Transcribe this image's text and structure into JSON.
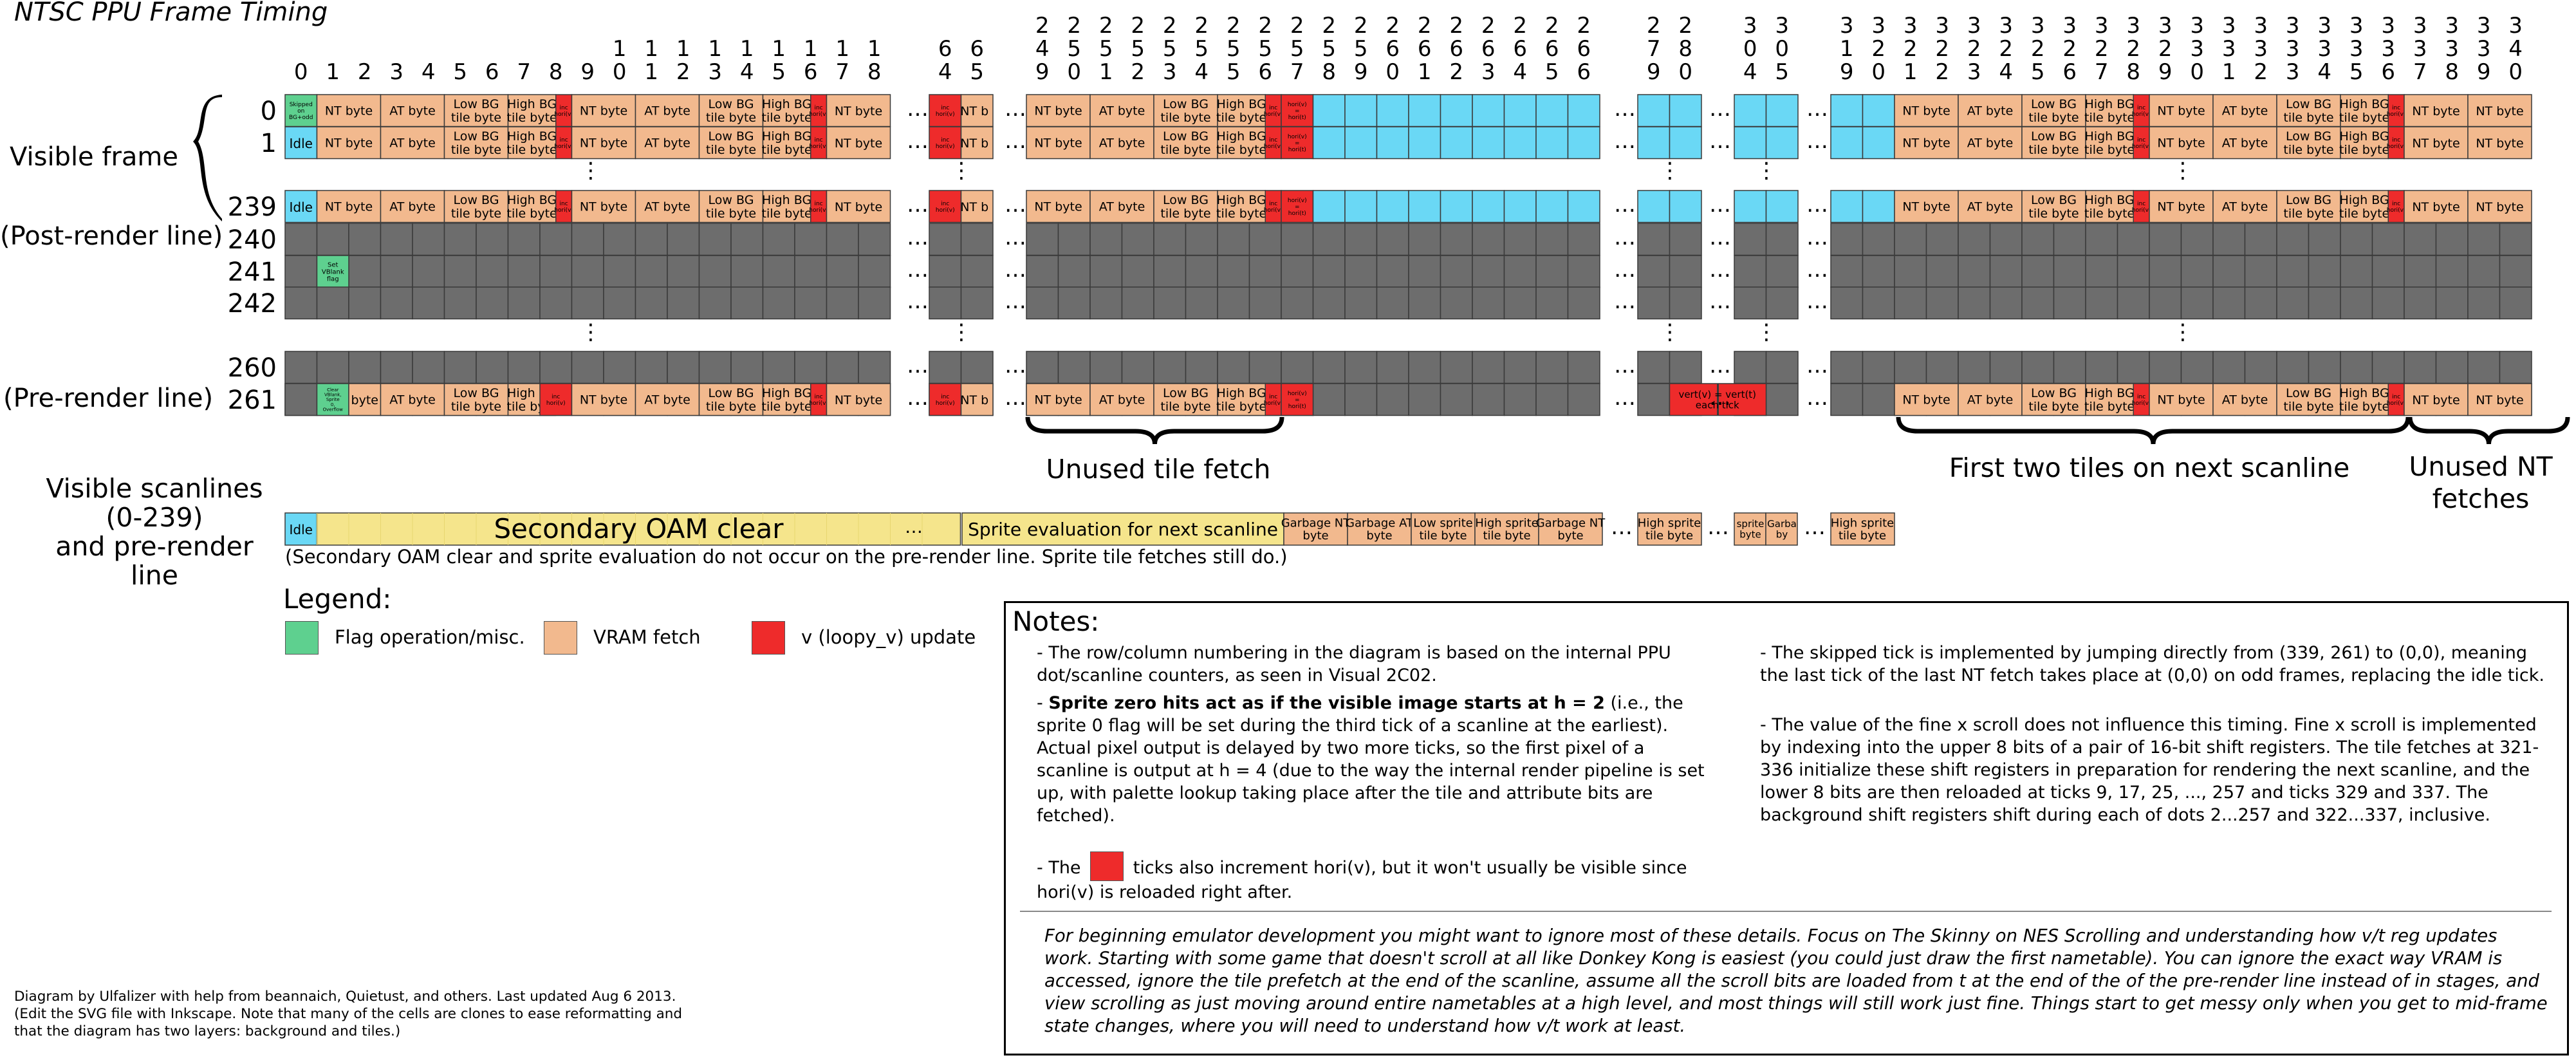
{
  "title": "NTSC PPU Frame Timing",
  "columns": {
    "groups": [
      [
        "0",
        "1",
        "2",
        "3",
        "4",
        "5",
        "6",
        "7",
        "8",
        "9",
        "10",
        "11",
        "12",
        "13",
        "14",
        "15",
        "16",
        "17",
        "18"
      ],
      [
        "64",
        "65"
      ],
      [
        "249",
        "250",
        "251",
        "252",
        "253",
        "254",
        "255",
        "256",
        "257",
        "258",
        "259",
        "260",
        "261",
        "262",
        "263",
        "264",
        "265",
        "266"
      ],
      [
        "279",
        "280"
      ],
      [
        "304",
        "305"
      ],
      [
        "319",
        "320",
        "321",
        "322",
        "323",
        "324",
        "325",
        "326",
        "327",
        "328",
        "329",
        "330",
        "331",
        "332",
        "333",
        "334",
        "335",
        "336",
        "337",
        "338",
        "339",
        "340"
      ]
    ]
  },
  "rows": {
    "labels": [
      "0",
      "1",
      "239",
      "240",
      "241",
      "242",
      "260",
      "261"
    ],
    "visible_frame": "Visible frame",
    "post_render": "(Post-render line)",
    "pre_render": "(Pre-render line)"
  },
  "cells": {
    "skipped": "Skipped on BG+odd",
    "idle": "Idle",
    "nt": "NT byte",
    "at": "AT byte",
    "lowbg": "Low BG tile byte",
    "highbg": "High BG tile byte",
    "inc_hori": "inc hori(v)",
    "inc_vert": "inc vert(v)",
    "hori_copy": "hori(v) = hori(t)",
    "set_vblank": "Set VBlank flag",
    "clear_flags": "Clear VBlank, Sprite 0, Overflow",
    "vert_copy": "vert(v) = vert(t) each tick",
    "nt_trunc": "NT b",
    "at_trunc": "byte"
  },
  "braces": {
    "unused_fetch": "Unused tile fetch",
    "first_two": "First two tiles on next scanline",
    "unused_nt": "Unused NT fetches"
  },
  "sprite": {
    "label": "Visible scanlines (0-239) and pre-render line",
    "label_lines": [
      "Visible scanlines",
      "(0-239)",
      "and pre-render",
      "line"
    ],
    "idle": "Idle",
    "oam_clear": "Secondary OAM clear",
    "evaluation": "Sprite evaluation for next scanline",
    "garbage_nt": "Garbage NT byte",
    "garbage_at": "Garbage AT byte",
    "low_sprite": "Low sprite tile byte",
    "high_sprite": "High sprite tile byte",
    "frag1": "sprite byte",
    "frag2": "Garba by",
    "note": "(Secondary OAM clear and sprite evaluation do not occur on the pre-render line. Sprite tile fetches still do.)"
  },
  "legend": {
    "title": "Legend:",
    "flag": "Flag operation/misc.",
    "vram": "VRAM fetch",
    "v_update": "v (loopy_v) update"
  },
  "notes": {
    "title": "Notes:",
    "n1": "- The row/column numbering in the diagram is based on the internal PPU dot/scanline counters, as seen in Visual 2C02.",
    "n2_bold": "Sprite zero hits act as if the visible image starts at h = 2",
    "n2_rest": " (i.e., the sprite 0 flag will be set during the third tick of a scanline at the earliest). Actual pixel output is delayed by two more ticks, so the first pixel of a scanline is output at h = 4 (due to the way the internal render pipeline is set up, with palette lookup taking place after the tile and attribute bits are fetched).",
    "n3_pre": "- The",
    "n3_post": "ticks also increment hori(v), but it won't usually be visible since hori(v) is reloaded right after.",
    "n4": "- The skipped tick is implemented by jumping directly from (339, 261) to (0,0), meaning the last tick of the last NT fetch takes place at (0,0) on odd frames, replacing the idle tick.",
    "n5": "- The value of the fine x scroll does not influence this timing. Fine x scroll is implemented by indexing into the upper 8 bits of a pair of 16-bit shift registers. The tile fetches at 321-336 initialize these shift registers in preparation for rendering the next scanline, and the lower 8 bits are then reloaded at ticks 9, 17, 25, ..., 257 and ticks 329 and 337. The background shift registers shift during each of dots 2...257 and 322...337, inclusive.",
    "beginner": "For beginning emulator development you might want to ignore most of these details. Focus on The Skinny on NES Scrolling and understanding how v/t reg updates work. Starting with some game that doesn't scroll at all like Donkey Kong is easiest (you could just draw the first nametable). You can ignore the exact way VRAM is accessed, ignore the tile prefetch at the end of the scanline, assume all the scroll bits are loaded from t at the end of the of the pre-render line instead of in stages, and view scrolling as just moving around entire nametables at a high level, and most things will still work just fine. Things start to get messy only when you get to mid-frame state changes, where you will need to understand how v/t work at least."
  },
  "credit": {
    "line1": "Diagram by Ulfalizer with help from beannaich, Quietust, and others. Last updated Aug 6 2013.",
    "line2": "(Edit the SVG file with Inkscape. Note that many of the cells are clones to ease reformatting and",
    "line3": "that the diagram has two layers: background and tiles.)"
  },
  "colors": {
    "grey": "#6d6d6d",
    "cyan": "#6ad8f5",
    "peach": "#f2b98e",
    "red": "#ee2b2b",
    "green": "#5ed08f",
    "yellow": "#f5e58c"
  }
}
